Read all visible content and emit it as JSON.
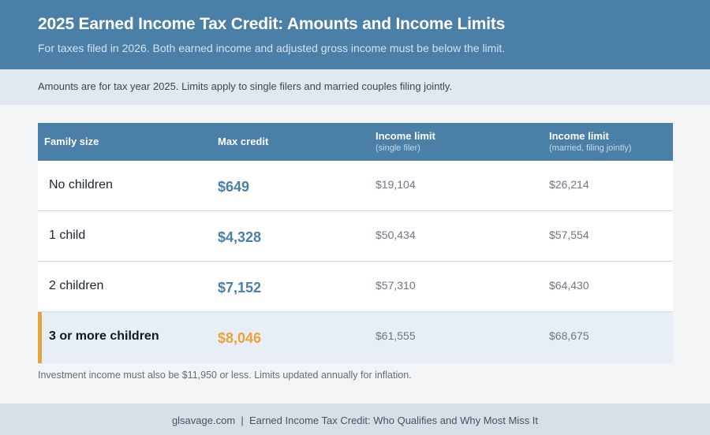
{
  "header": {
    "title": "2025 Earned Income Tax Credit: Amounts and Income Limits",
    "subtitle": "For taxes filed in 2026. Both earned income and adjusted gross income must be below the limit."
  },
  "note": "Amounts are for tax year 2025. Limits apply to single filers and married couples filing jointly.",
  "table": {
    "columns": [
      {
        "label": "Family size",
        "sub": ""
      },
      {
        "label": "Max credit",
        "sub": ""
      },
      {
        "label": "Income limit",
        "sub": "(single filer)"
      },
      {
        "label": "Income limit",
        "sub": "(married, filing jointly)"
      }
    ],
    "rows": [
      {
        "family": "No children",
        "credit": "$649",
        "single": "$19,104",
        "married": "$26,214"
      },
      {
        "family": "1 child",
        "credit": "$4,328",
        "single": "$50,434",
        "married": "$57,554"
      },
      {
        "family": "2 children",
        "credit": "$7,152",
        "single": "$57,310",
        "married": "$64,430"
      },
      {
        "family": "3 or more children",
        "credit": "$8,046",
        "single": "$61,555",
        "married": "$68,675",
        "highlighted": true
      }
    ]
  },
  "footnote": "Investment income must also be $11,950 or less. Limits updated annually for inflation.",
  "footer": {
    "text": "glsavage.com  |  Earned Income Tax Credit: Who Qualifies and Why Most Miss It"
  },
  "colors": {
    "header_bg": "#4a7fa7",
    "accent": "#e8a33a",
    "credit_blue": "#4a7fa7"
  }
}
